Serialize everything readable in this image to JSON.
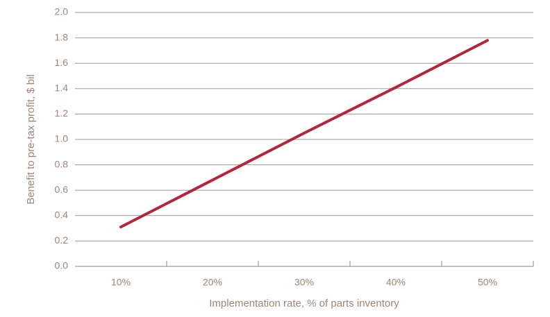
{
  "chart_data": {
    "type": "line",
    "x_label": "Implementation rate, % of parts inventory",
    "y_label": "Benefit to pre-tax profit, $ bil",
    "categories": [
      "10%",
      "20%",
      "30%",
      "40%",
      "50%"
    ],
    "series": [
      {
        "name": null,
        "color": "#b3263a",
        "values": [
          0.31,
          0.68,
          1.05,
          1.41,
          1.78
        ]
      }
    ],
    "ylim": [
      0,
      2
    ],
    "yticks": [
      {
        "value": 0,
        "label": "0.0"
      },
      0.2,
      0.4,
      0.6,
      0.8,
      {
        "value": 1,
        "label": "1.0"
      },
      1.2,
      1.4,
      1.6,
      1.8,
      {
        "value": 2,
        "label": "2.0"
      }
    ],
    "grid": true
  }
}
